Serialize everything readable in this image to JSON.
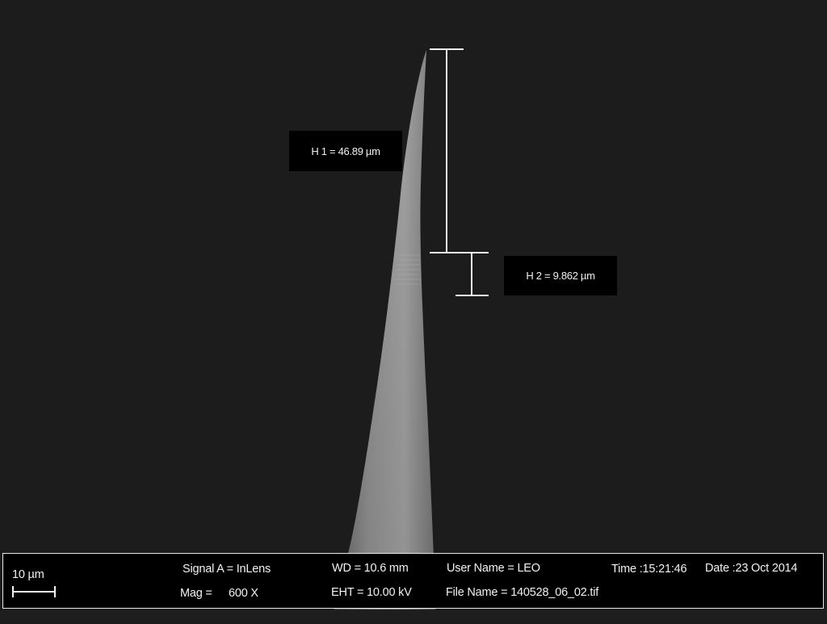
{
  "image": {
    "background_color": "#1c1c1c",
    "subject": "tapered-needle-tip"
  },
  "measurements": {
    "h1_label": "H 1 = 46.89 µm",
    "h2_label": "H 2 = 9.862 µm"
  },
  "info_bar": {
    "scale_label": "10 µm",
    "signal": "Signal A = InLens",
    "mag_label": "Mag =",
    "mag_value": "600 X",
    "wd": "WD = 10.6 mm",
    "eht": "EHT = 10.00 kV",
    "user_name": "User Name = LEO",
    "file_name": "File Name = 140528_06_02.tif",
    "time": "Time :15:21:46",
    "date": "Date :23 Oct 2014"
  }
}
